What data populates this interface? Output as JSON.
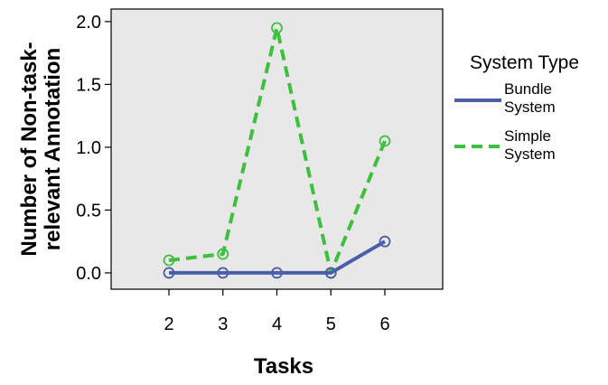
{
  "chart_data": {
    "type": "line",
    "xlabel": "Tasks",
    "ylabel_lines": [
      "Number of Non-task-",
      "relevant Annotation"
    ],
    "categories": [
      2,
      3,
      4,
      5,
      6
    ],
    "ylim": [
      -0.13,
      2.1
    ],
    "yticks": [
      0.0,
      0.5,
      1.0,
      1.5,
      2.0
    ],
    "ytick_labels": [
      "0.0",
      "0.5",
      "1.0",
      "1.5",
      "2.0"
    ],
    "xtick_labels": [
      "2",
      "3",
      "4",
      "5",
      "6"
    ],
    "grid": false,
    "plot_background": "#e8e8e8",
    "legend": {
      "title": "System Type",
      "placement": "right"
    },
    "series": [
      {
        "name_lines": [
          "Bundle",
          "System"
        ],
        "color": "#4a5fa8",
        "dash": "solid",
        "values": [
          0.0,
          0.0,
          0.0,
          0.0,
          0.25
        ]
      },
      {
        "name_lines": [
          "Simple",
          "System"
        ],
        "color": "#3fbf3f",
        "dash": "dashed",
        "values": [
          0.1,
          0.15,
          1.95,
          0.0,
          1.05
        ]
      }
    ]
  }
}
